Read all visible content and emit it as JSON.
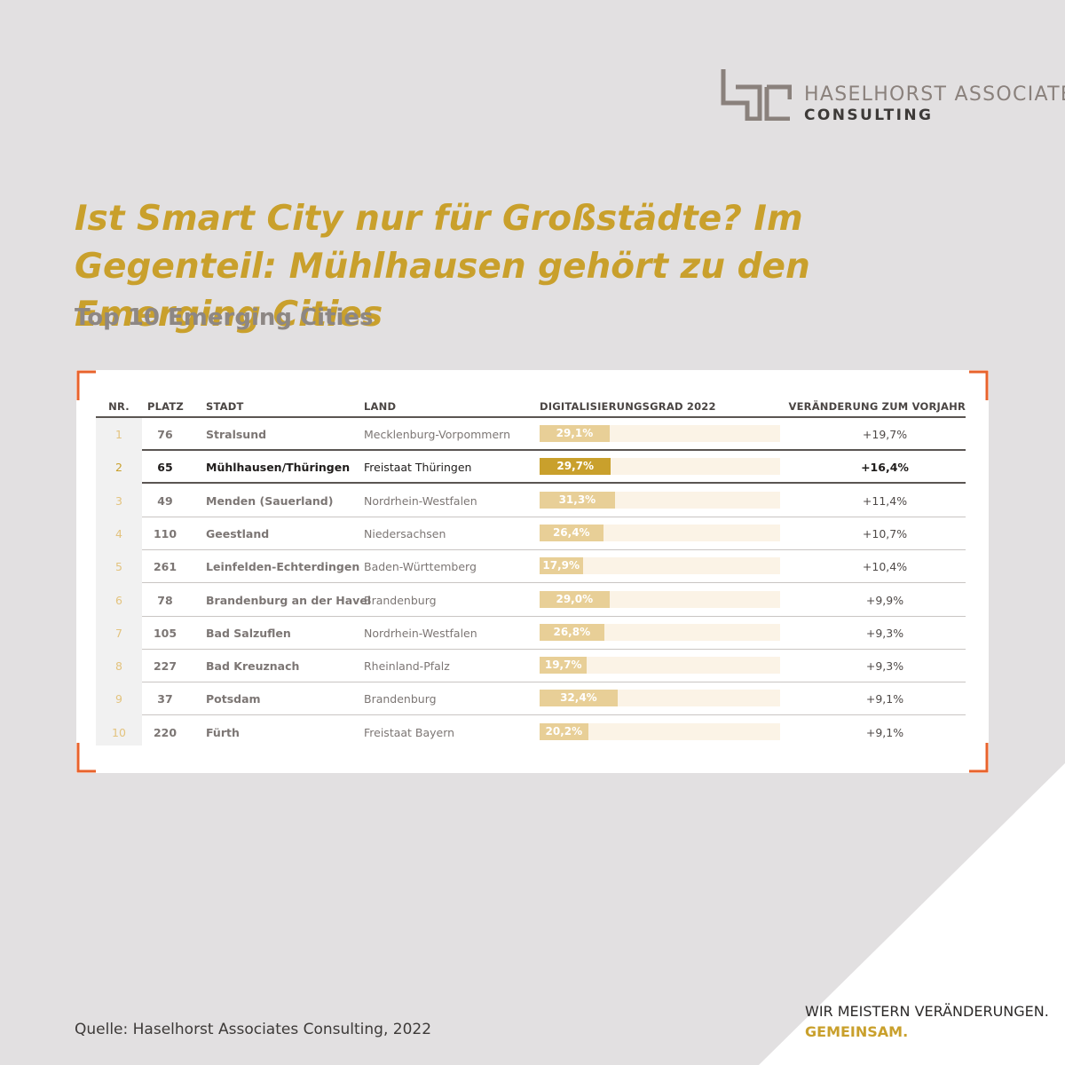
{
  "brand": {
    "name_line1": "HASELHORST ASSOCIATES",
    "name_line2": "CONSULTING"
  },
  "colors": {
    "accent_gold": "#c9a02c",
    "bar_light": "#e8cf97",
    "frame_orange": "#e8632c"
  },
  "headline": "Ist Smart City nur für Großstädte? Im Gegenteil: Mühlhausen gehört zu den Emerging Cities",
  "subheadline": "Top 10 Emerging Cities",
  "table_headers": {
    "nr": "NR.",
    "platz": "PLATZ",
    "stadt": "STADT",
    "land": "LAND",
    "grad": "DIGITALISIERUNGSGRAD 2022",
    "change": "VERÄNDERUNG ZUM VORJAHR"
  },
  "chart_data": {
    "type": "table",
    "title": "Top 10 Emerging Cities",
    "columns": [
      "NR.",
      "PLATZ",
      "STADT",
      "LAND",
      "DIGITALISIERUNGSGRAD 2022",
      "VERÄNDERUNG ZUM VORJAHR"
    ],
    "bar_max": 100,
    "highlight_row": 2,
    "rows": [
      {
        "nr": "1",
        "platz": "76",
        "stadt": "Stralsund",
        "land": "Mecklenburg-Vorpommern",
        "grad": 29.1,
        "grad_label": "29,1%",
        "change": "+19,7%"
      },
      {
        "nr": "2",
        "platz": "65",
        "stadt": "Mühlhausen/Thüringen",
        "land": "Freistaat Thüringen",
        "grad": 29.7,
        "grad_label": "29,7%",
        "change": "+16,4%"
      },
      {
        "nr": "3",
        "platz": "49",
        "stadt": "Menden (Sauerland)",
        "land": "Nordrhein-Westfalen",
        "grad": 31.3,
        "grad_label": "31,3%",
        "change": "+11,4%"
      },
      {
        "nr": "4",
        "platz": "110",
        "stadt": "Geestland",
        "land": "Niedersachsen",
        "grad": 26.4,
        "grad_label": "26,4%",
        "change": "+10,7%"
      },
      {
        "nr": "5",
        "platz": "261",
        "stadt": "Leinfelden-Echterdingen",
        "land": "Baden-Württemberg",
        "grad": 17.9,
        "grad_label": "17,9%",
        "change": "+10,4%"
      },
      {
        "nr": "6",
        "platz": "78",
        "stadt": "Brandenburg an der Havel",
        "land": "Brandenburg",
        "grad": 29.0,
        "grad_label": "29,0%",
        "change": "+9,9%"
      },
      {
        "nr": "7",
        "platz": "105",
        "stadt": "Bad Salzuflen",
        "land": "Nordrhein-Westfalen",
        "grad": 26.8,
        "grad_label": "26,8%",
        "change": "+9,3%"
      },
      {
        "nr": "8",
        "platz": "227",
        "stadt": "Bad Kreuznach",
        "land": "Rheinland-Pfalz",
        "grad": 19.7,
        "grad_label": "19,7%",
        "change": "+9,3%"
      },
      {
        "nr": "9",
        "platz": "37",
        "stadt": "Potsdam",
        "land": "Brandenburg",
        "grad": 32.4,
        "grad_label": "32,4%",
        "change": "+9,1%"
      },
      {
        "nr": "10",
        "platz": "220",
        "stadt": "Fürth",
        "land": "Freistaat Bayern",
        "grad": 20.2,
        "grad_label": "20,2%",
        "change": "+9,1%"
      }
    ]
  },
  "source": "Quelle: Haselhorst Associates Consulting, 2022",
  "slogan": {
    "line1": "WIR MEISTERN VERÄNDERUNGEN.",
    "line2": "GEMEINSAM."
  }
}
